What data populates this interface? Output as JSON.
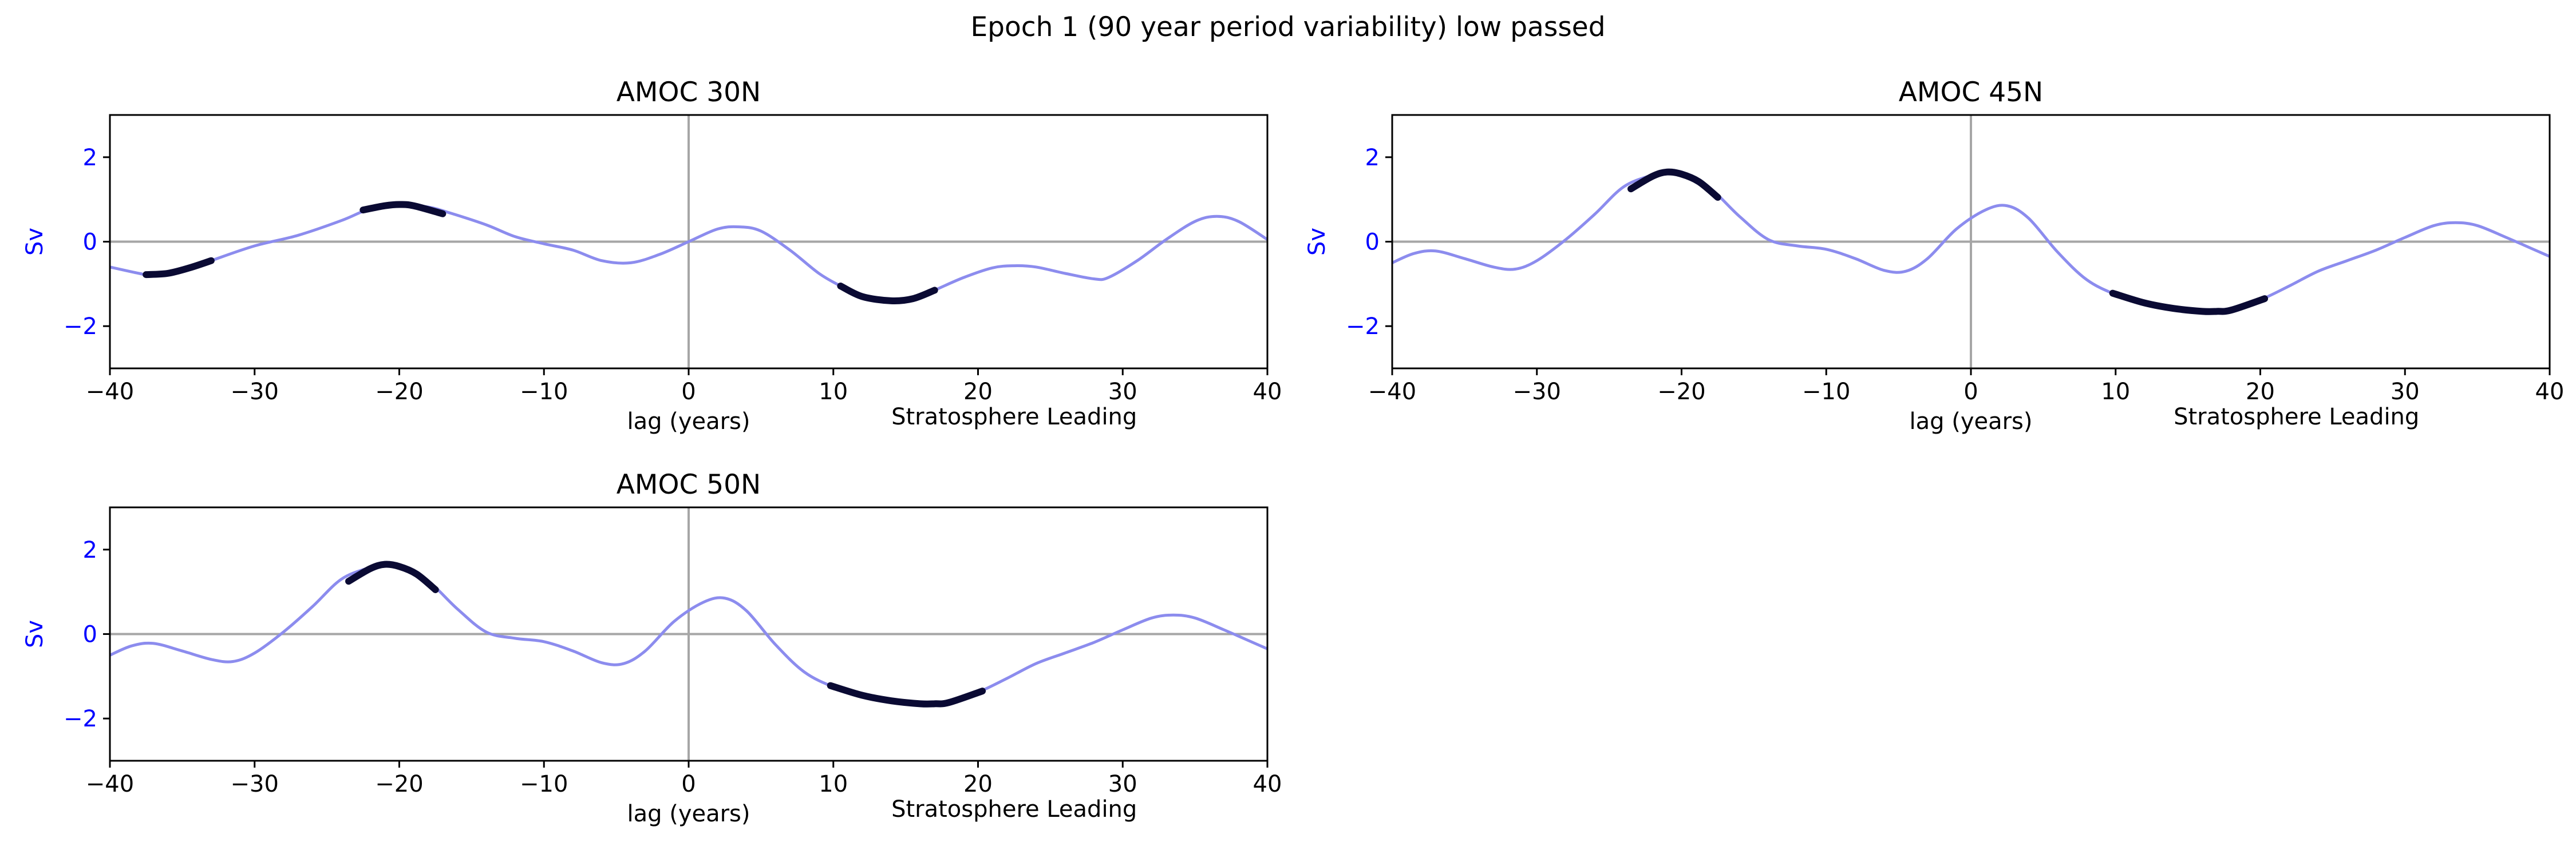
{
  "figure": {
    "title": "Epoch 1 (90 year period variability) low passed"
  },
  "colors": {
    "line": "#8c8cee",
    "significant": "#0a0a33",
    "reference": "#a6a6a6",
    "ytick": "#0000ff",
    "axes": "#000000"
  },
  "chart_data": [
    {
      "type": "line",
      "title": "AMOC 30N",
      "xlabel": "lag (years)",
      "annotation": "Stratosphere Leading",
      "ylabel": "Sv",
      "xlim": [
        -40,
        40
      ],
      "ylim": [
        -3,
        3
      ],
      "xticks": [
        -40,
        -30,
        -20,
        -10,
        0,
        10,
        20,
        30,
        40
      ],
      "yticks": [
        -2,
        0,
        2
      ],
      "reference_lines": {
        "x": 0,
        "y": 0
      },
      "series": [
        {
          "x": [
            -40,
            -38,
            -37,
            -35,
            -33,
            -30,
            -27,
            -24,
            -22,
            -20,
            -18,
            -16.5,
            -14,
            -12,
            -10,
            -8,
            -6,
            -4,
            -2,
            0,
            2,
            3.5,
            5,
            7,
            9,
            10.5,
            12,
            14,
            16,
            17,
            19,
            21,
            22.5,
            24,
            26,
            28,
            29,
            31,
            33,
            35,
            36.5,
            38,
            40
          ],
          "y": [
            -0.6,
            -0.75,
            -0.8,
            -0.7,
            -0.45,
            -0.1,
            0.15,
            0.5,
            0.78,
            0.88,
            0.82,
            0.68,
            0.4,
            0.12,
            -0.05,
            -0.2,
            -0.45,
            -0.5,
            -0.3,
            0.0,
            0.3,
            0.35,
            0.25,
            -0.2,
            -0.75,
            -1.05,
            -1.3,
            -1.4,
            -1.3,
            -1.15,
            -0.85,
            -0.62,
            -0.57,
            -0.6,
            -0.75,
            -0.88,
            -0.85,
            -0.45,
            0.05,
            0.48,
            0.6,
            0.48,
            0.05
          ]
        }
      ],
      "significant_segments": [
        {
          "x": [
            -37.5,
            -36,
            -34.5,
            -33
          ],
          "y": [
            -0.78,
            -0.75,
            -0.62,
            -0.45
          ]
        },
        {
          "x": [
            -22.5,
            -21,
            -20,
            -19,
            -17
          ],
          "y": [
            0.75,
            0.85,
            0.88,
            0.85,
            0.66
          ]
        },
        {
          "x": [
            10.5,
            12,
            14,
            15.5,
            17
          ],
          "y": [
            -1.05,
            -1.3,
            -1.4,
            -1.35,
            -1.15
          ]
        }
      ]
    },
    {
      "type": "line",
      "title": "AMOC 45N",
      "xlabel": "lag (years)",
      "annotation": "Stratosphere Leading",
      "ylabel": "Sv",
      "xlim": [
        -40,
        40
      ],
      "ylim": [
        -3,
        3
      ],
      "xticks": [
        -40,
        -30,
        -20,
        -10,
        0,
        10,
        20,
        30,
        40
      ],
      "yticks": [
        -2,
        0,
        2
      ],
      "reference_lines": {
        "x": 0,
        "y": 0
      },
      "series": [
        {
          "x": [
            -40,
            -38.5,
            -37,
            -35,
            -33,
            -31.5,
            -30,
            -28,
            -26,
            -24,
            -22,
            -21,
            -20,
            -18,
            -16,
            -14,
            -12,
            -10,
            -8,
            -6,
            -4.5,
            -3,
            -1,
            1,
            2.5,
            4,
            6,
            8,
            10,
            12,
            14,
            16,
            17,
            18,
            20,
            22,
            24,
            26,
            28,
            30,
            32,
            33.5,
            35,
            37,
            39,
            40
          ],
          "y": [
            -0.5,
            -0.28,
            -0.22,
            -0.4,
            -0.6,
            -0.65,
            -0.45,
            0.05,
            0.65,
            1.3,
            1.58,
            1.65,
            1.6,
            1.25,
            0.6,
            0.05,
            -0.1,
            -0.18,
            -0.4,
            -0.68,
            -0.7,
            -0.4,
            0.3,
            0.75,
            0.85,
            0.55,
            -0.25,
            -0.9,
            -1.25,
            -1.45,
            -1.58,
            -1.65,
            -1.65,
            -1.62,
            -1.38,
            -1.05,
            -0.7,
            -0.45,
            -0.2,
            0.1,
            0.38,
            0.45,
            0.38,
            0.1,
            -0.2,
            -0.35
          ]
        }
      ],
      "significant_segments": [
        {
          "x": [
            -23.5,
            -22,
            -21,
            -20,
            -18.8,
            -17.5
          ],
          "y": [
            1.25,
            1.55,
            1.65,
            1.6,
            1.42,
            1.05
          ]
        },
        {
          "x": [
            9.8,
            12,
            14,
            16,
            17,
            18,
            20.3
          ],
          "y": [
            -1.22,
            -1.45,
            -1.58,
            -1.65,
            -1.65,
            -1.62,
            -1.35
          ]
        }
      ]
    },
    {
      "type": "line",
      "title": "AMOC 50N",
      "xlabel": "lag (years)",
      "annotation": "Stratosphere Leading",
      "ylabel": "Sv",
      "xlim": [
        -40,
        40
      ],
      "ylim": [
        -3,
        3
      ],
      "xticks": [
        -40,
        -30,
        -20,
        -10,
        0,
        10,
        20,
        30,
        40
      ],
      "yticks": [
        -2,
        0,
        2
      ],
      "reference_lines": {
        "x": 0,
        "y": 0
      },
      "series": [
        {
          "x": [
            -40,
            -38.5,
            -37,
            -35,
            -33,
            -31.5,
            -30,
            -28,
            -26,
            -24,
            -22,
            -21,
            -20,
            -18,
            -16,
            -14,
            -12,
            -10,
            -8,
            -6,
            -4.5,
            -3,
            -1,
            1,
            2.5,
            4,
            6,
            8,
            10,
            12,
            14,
            16,
            17,
            18,
            20,
            22,
            24,
            26,
            28,
            30,
            32,
            33.5,
            35,
            37,
            39,
            40
          ],
          "y": [
            -0.5,
            -0.28,
            -0.22,
            -0.4,
            -0.6,
            -0.65,
            -0.45,
            0.05,
            0.65,
            1.3,
            1.58,
            1.65,
            1.6,
            1.25,
            0.6,
            0.05,
            -0.1,
            -0.18,
            -0.4,
            -0.68,
            -0.7,
            -0.4,
            0.3,
            0.75,
            0.85,
            0.55,
            -0.25,
            -0.9,
            -1.25,
            -1.45,
            -1.58,
            -1.65,
            -1.65,
            -1.62,
            -1.38,
            -1.05,
            -0.7,
            -0.45,
            -0.2,
            0.1,
            0.38,
            0.45,
            0.38,
            0.1,
            -0.2,
            -0.35
          ]
        }
      ],
      "significant_segments": [
        {
          "x": [
            -23.5,
            -22,
            -21,
            -20,
            -18.8,
            -17.5
          ],
          "y": [
            1.25,
            1.55,
            1.65,
            1.6,
            1.42,
            1.05
          ]
        },
        {
          "x": [
            9.8,
            12,
            14,
            16,
            17,
            18,
            20.3
          ],
          "y": [
            -1.22,
            -1.45,
            -1.58,
            -1.65,
            -1.65,
            -1.62,
            -1.35
          ]
        }
      ]
    }
  ]
}
